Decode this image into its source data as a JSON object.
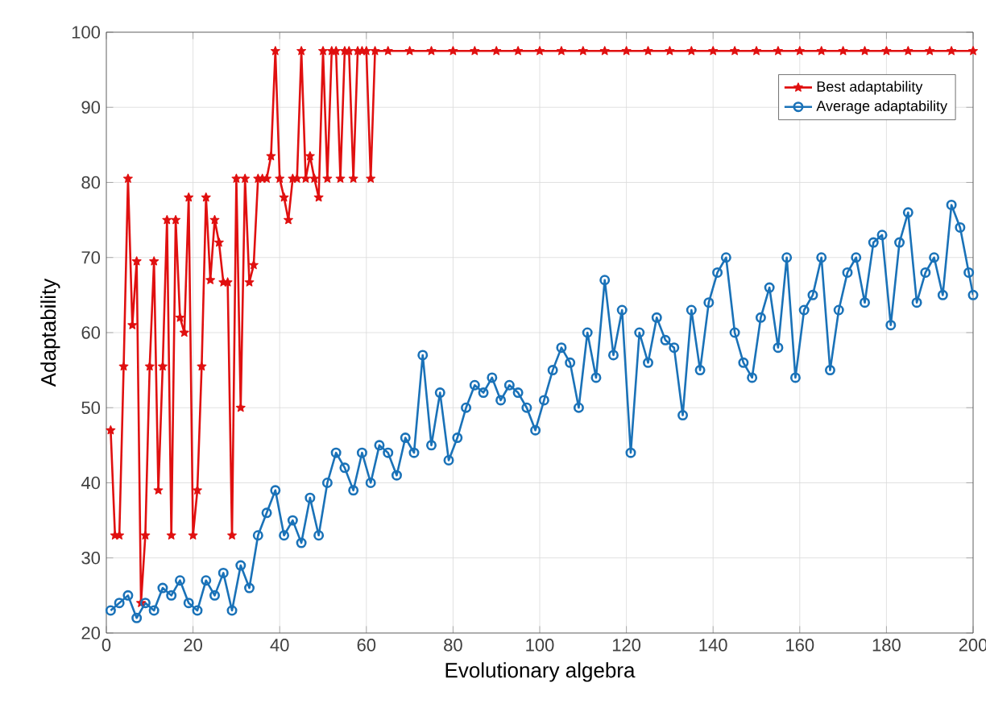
{
  "chart_data": {
    "type": "line",
    "xlabel": "Evolutionary algebra",
    "ylabel": "Adaptability",
    "xlim": [
      0,
      200
    ],
    "ylim": [
      20,
      100
    ],
    "xticks": [
      0,
      20,
      40,
      60,
      80,
      100,
      120,
      140,
      160,
      180,
      200
    ],
    "yticks": [
      20,
      30,
      40,
      50,
      60,
      70,
      80,
      90,
      100
    ],
    "grid": true,
    "legend": "top right",
    "line_style": "solid",
    "series": [
      {
        "name": "Best adaptability",
        "color": "#e01010",
        "marker": "star",
        "x": [
          1,
          2,
          3,
          4,
          5,
          6,
          7,
          8,
          9,
          10,
          11,
          12,
          13,
          14,
          15,
          16,
          17,
          18,
          19,
          20,
          21,
          22,
          23,
          24,
          25,
          26,
          27,
          28,
          29,
          30,
          31,
          32,
          33,
          34,
          35,
          36,
          37,
          38,
          39,
          40,
          41,
          42,
          43,
          44,
          45,
          46,
          47,
          48,
          49,
          50,
          51,
          52,
          53,
          54,
          55,
          56,
          57,
          58,
          59,
          60,
          61,
          62,
          65,
          70,
          75,
          80,
          85,
          90,
          95,
          100,
          105,
          110,
          115,
          120,
          125,
          130,
          135,
          140,
          145,
          150,
          155,
          160,
          165,
          170,
          175,
          180,
          185,
          190,
          195,
          200
        ],
        "values": [
          47,
          33,
          33,
          55.5,
          80.5,
          61,
          69.5,
          24,
          33,
          55.5,
          69.5,
          39,
          55.5,
          75,
          33,
          75,
          62,
          60,
          78,
          33,
          39,
          55.5,
          78,
          67,
          75,
          72,
          66.7,
          66.7,
          33,
          80.5,
          50,
          80.5,
          66.7,
          69,
          80.5,
          80.5,
          80.5,
          83.5,
          97.5,
          80.5,
          78,
          75,
          80.5,
          80.5,
          97.5,
          80.5,
          83.5,
          80.5,
          78,
          97.5,
          80.5,
          97.5,
          97.5,
          80.5,
          97.5,
          97.5,
          80.5,
          97.5,
          97.5,
          97.5,
          80.5,
          97.5,
          97.5,
          97.5,
          97.5,
          97.5,
          97.5,
          97.5,
          97.5,
          97.5,
          97.5,
          97.5,
          97.5,
          97.5,
          97.5,
          97.5,
          97.5,
          97.5,
          97.5,
          97.5,
          97.5,
          97.5,
          97.5,
          97.5,
          97.5,
          97.5,
          97.5,
          97.5,
          97.5,
          97.5
        ]
      },
      {
        "name": "Average adaptability",
        "color": "#1a72b8",
        "marker": "circle",
        "x": [
          1,
          3,
          5,
          7,
          9,
          11,
          13,
          15,
          17,
          19,
          21,
          23,
          25,
          27,
          29,
          31,
          33,
          35,
          37,
          39,
          41,
          43,
          45,
          47,
          49,
          51,
          53,
          55,
          57,
          59,
          61,
          63,
          65,
          67,
          69,
          71,
          73,
          75,
          77,
          79,
          81,
          83,
          85,
          87,
          89,
          91,
          93,
          95,
          97,
          99,
          101,
          103,
          105,
          107,
          109,
          111,
          113,
          115,
          117,
          119,
          121,
          123,
          125,
          127,
          129,
          131,
          133,
          135,
          137,
          139,
          141,
          143,
          145,
          147,
          149,
          151,
          153,
          155,
          157,
          159,
          161,
          163,
          165,
          167,
          169,
          171,
          173,
          175,
          177,
          179,
          181,
          183,
          185,
          187,
          189,
          191,
          193,
          195,
          197,
          199,
          200
        ],
        "values": [
          23,
          24,
          25,
          22,
          24,
          23,
          26,
          25,
          27,
          24,
          23,
          27,
          25,
          28,
          23,
          29,
          26,
          33,
          36,
          39,
          33,
          35,
          32,
          38,
          33,
          40,
          44,
          42,
          39,
          44,
          40,
          45,
          44,
          41,
          46,
          44,
          57,
          45,
          52,
          43,
          46,
          50,
          53,
          52,
          54,
          51,
          53,
          52,
          50,
          47,
          51,
          55,
          58,
          56,
          50,
          60,
          54,
          67,
          57,
          63,
          44,
          60,
          56,
          62,
          59,
          58,
          49,
          63,
          55,
          64,
          68,
          70,
          60,
          56,
          54,
          62,
          66,
          58,
          70,
          54,
          63,
          65,
          70,
          55,
          63,
          68,
          70,
          64,
          72,
          73,
          61,
          72,
          76,
          64,
          68,
          70,
          65,
          77,
          74,
          68,
          65
        ]
      }
    ]
  }
}
